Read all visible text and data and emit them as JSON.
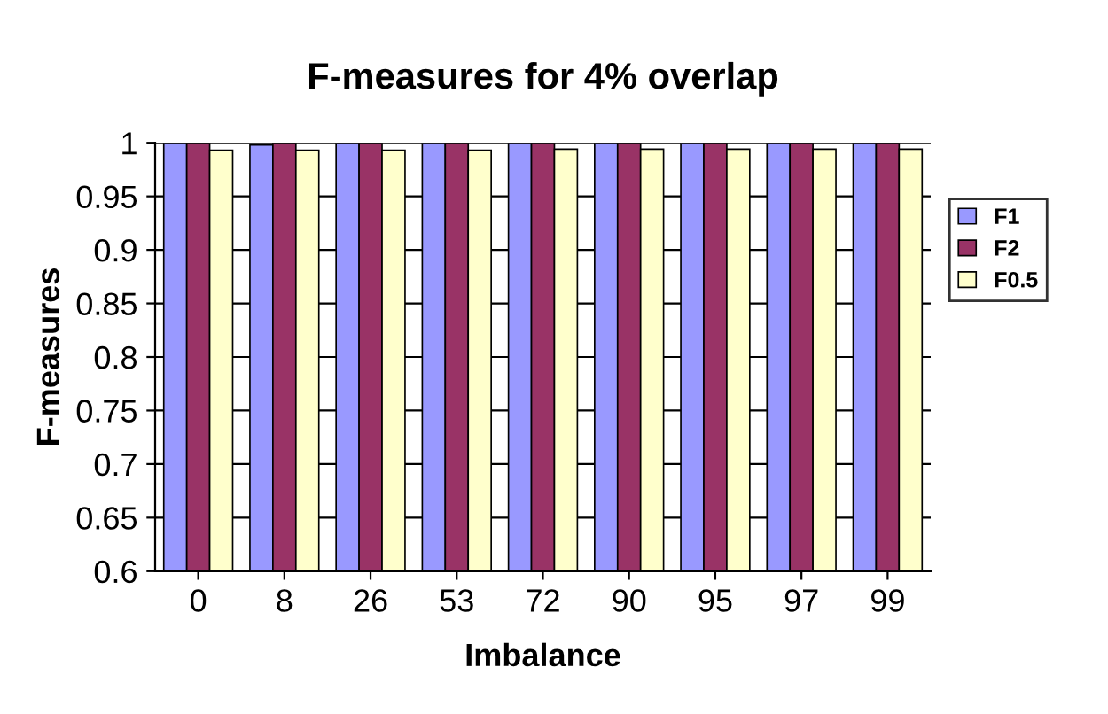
{
  "chart_data": {
    "type": "bar",
    "title": "F-measures for 4% overlap",
    "xlabel": "Imbalance",
    "ylabel": "F-measures",
    "categories": [
      "0",
      "8",
      "26",
      "53",
      "72",
      "90",
      "95",
      "97",
      "99"
    ],
    "series": [
      {
        "name": "F1",
        "color": "#9999ff",
        "values": [
          1,
          0.998,
          1,
          1,
          1,
          1,
          1,
          1,
          1
        ]
      },
      {
        "name": "F2",
        "color": "#993366",
        "values": [
          1,
          1,
          1,
          1,
          1,
          1,
          1,
          1,
          1
        ]
      },
      {
        "name": "F0.5",
        "color": "#ffffcc",
        "values": [
          0.993,
          0.993,
          0.993,
          0.993,
          0.994,
          0.994,
          0.994,
          0.994,
          0.994
        ]
      }
    ],
    "ylim": [
      0.6,
      1
    ],
    "yticks": [
      0.6,
      0.65,
      0.7,
      0.75,
      0.8,
      0.85,
      0.9,
      0.95,
      1
    ],
    "grid": "y",
    "legend": "right"
  }
}
